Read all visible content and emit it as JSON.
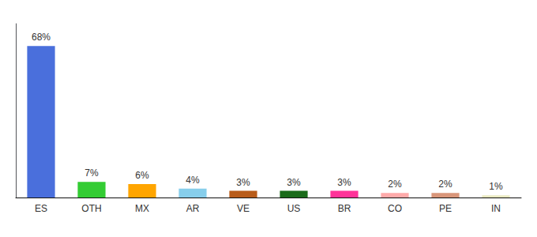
{
  "chart_data": {
    "type": "bar",
    "categories": [
      "ES",
      "OTH",
      "MX",
      "AR",
      "VE",
      "US",
      "BR",
      "CO",
      "PE",
      "IN"
    ],
    "values": [
      68,
      7,
      6,
      4,
      3,
      3,
      3,
      2,
      2,
      1
    ],
    "value_labels": [
      "68%",
      "7%",
      "6%",
      "4%",
      "3%",
      "3%",
      "3%",
      "2%",
      "2%",
      "1%"
    ],
    "colors": [
      "#4a6fdc",
      "#33cc33",
      "#ffa500",
      "#87ceeb",
      "#b85c1a",
      "#1a6b1a",
      "#ff3399",
      "#ffaaaa",
      "#d9967a",
      "#e8e8c0"
    ],
    "ylim": [
      0,
      78
    ],
    "data_labels": true,
    "tick_labels": "x",
    "grid": false
  }
}
